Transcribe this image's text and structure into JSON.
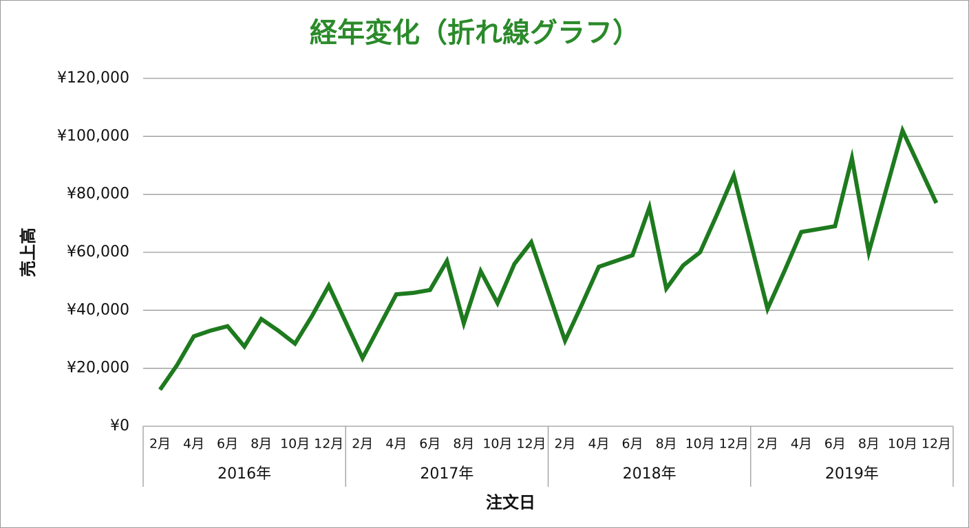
{
  "chart_data": {
    "type": "line",
    "title": "経年変化（折れ線グラフ）",
    "x_label": "注文日",
    "y_label": "売上高",
    "categories": [
      null,
      "2月",
      null,
      "4月",
      null,
      "6月",
      null,
      "8月",
      null,
      "10月",
      null,
      "12月",
      null,
      "2月",
      null,
      "4月",
      null,
      "6月",
      null,
      "8月",
      null,
      "10月",
      null,
      "12月",
      null,
      "2月",
      null,
      "4月",
      null,
      "6月",
      null,
      "8月",
      null,
      "10月",
      null,
      "12月",
      null,
      "2月",
      null,
      "4月",
      null,
      "6月",
      null,
      "8月",
      null,
      "10月",
      null,
      "12月"
    ],
    "year_groups": [
      "2016年",
      "2017年",
      "2018年",
      "2019年"
    ],
    "series": [
      {
        "name": "売上高",
        "color": "#1e7a1e",
        "values": [
          null,
          12600,
          21000,
          31000,
          33000,
          34500,
          27500,
          37000,
          33000,
          28500,
          38000,
          48500,
          36000,
          23500,
          34500,
          45500,
          46000,
          47000,
          57000,
          35500,
          53500,
          42500,
          56000,
          63500,
          46500,
          29500,
          42000,
          55000,
          57000,
          59000,
          75500,
          47500,
          55500,
          60000,
          73000,
          86500,
          63500,
          40500,
          53500,
          67000,
          68000,
          69000,
          92500,
          60000,
          81000,
          102000,
          89500,
          77000
        ]
      }
    ],
    "ylim": [
      0,
      120000
    ],
    "yticks": [
      {
        "value": 0,
        "label": "¥0"
      },
      {
        "value": 20000,
        "label": "¥20,000"
      },
      {
        "value": 40000,
        "label": "¥40,000"
      },
      {
        "value": 60000,
        "label": "¥60,000"
      },
      {
        "value": 80000,
        "label": "¥80,000"
      },
      {
        "value": 100000,
        "label": "¥100,000"
      },
      {
        "value": 120000,
        "label": "¥120,000"
      }
    ],
    "grid": true,
    "title_color": "#2a8a2a"
  }
}
